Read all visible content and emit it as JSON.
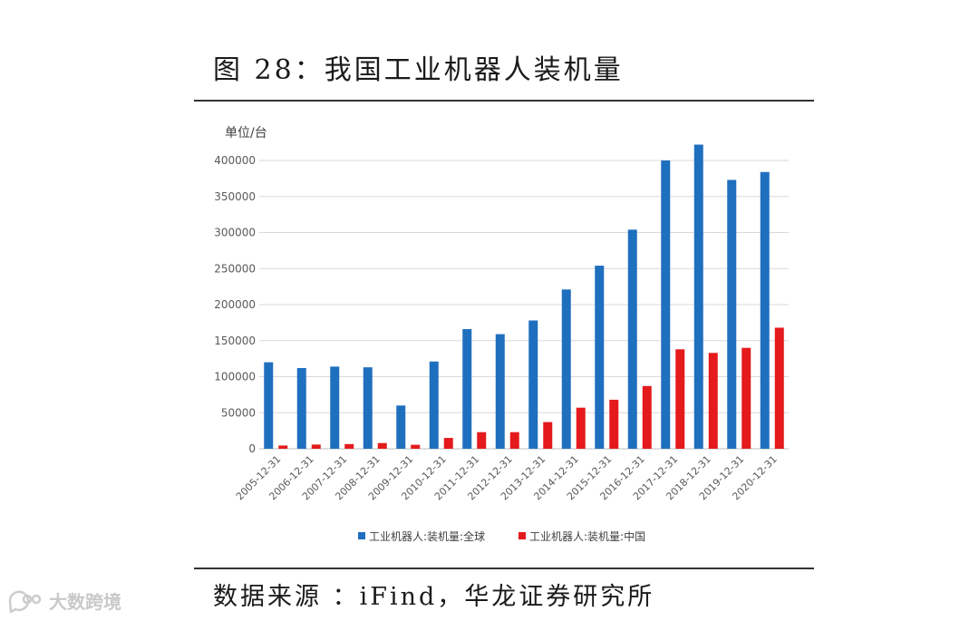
{
  "figure": {
    "title": "图 28：我国工业机器人装机量",
    "source": "数据来源 ：iFind，华龙证券研究所"
  },
  "watermark": {
    "text": "大数跨境",
    "icon": "bubble-logo-icon"
  },
  "colors": {
    "global": "#1f6fbf",
    "china": "#e41a1c",
    "grid": "#d9d9d9",
    "axis_text": "#595959"
  },
  "chart_data": {
    "type": "bar",
    "unit_label": "单位/台",
    "categories": [
      "2005-12-31",
      "2006-12-31",
      "2007-12-31",
      "2008-12-31",
      "2009-12-31",
      "2010-12-31",
      "2011-12-31",
      "2012-12-31",
      "2013-12-31",
      "2014-12-31",
      "2015-12-31",
      "2016-12-31",
      "2017-12-31",
      "2018-12-31",
      "2019-12-31",
      "2020-12-31"
    ],
    "series": [
      {
        "name": "工业机器人:装机量:全球",
        "values": [
          120000,
          112000,
          114000,
          113000,
          60000,
          121000,
          166000,
          159000,
          178000,
          221000,
          254000,
          304000,
          400000,
          422000,
          373000,
          384000
        ]
      },
      {
        "name": "工业机器人:装机量:中国",
        "values": [
          4500,
          5800,
          6500,
          7900,
          5500,
          15000,
          23000,
          23000,
          37000,
          57000,
          68000,
          87000,
          138000,
          133000,
          140000,
          168000
        ]
      }
    ],
    "ylim": [
      0,
      400000
    ],
    "yticks": [
      0,
      50000,
      100000,
      150000,
      200000,
      250000,
      300000,
      350000,
      400000
    ],
    "grid": true,
    "legend_position": "bottom"
  }
}
